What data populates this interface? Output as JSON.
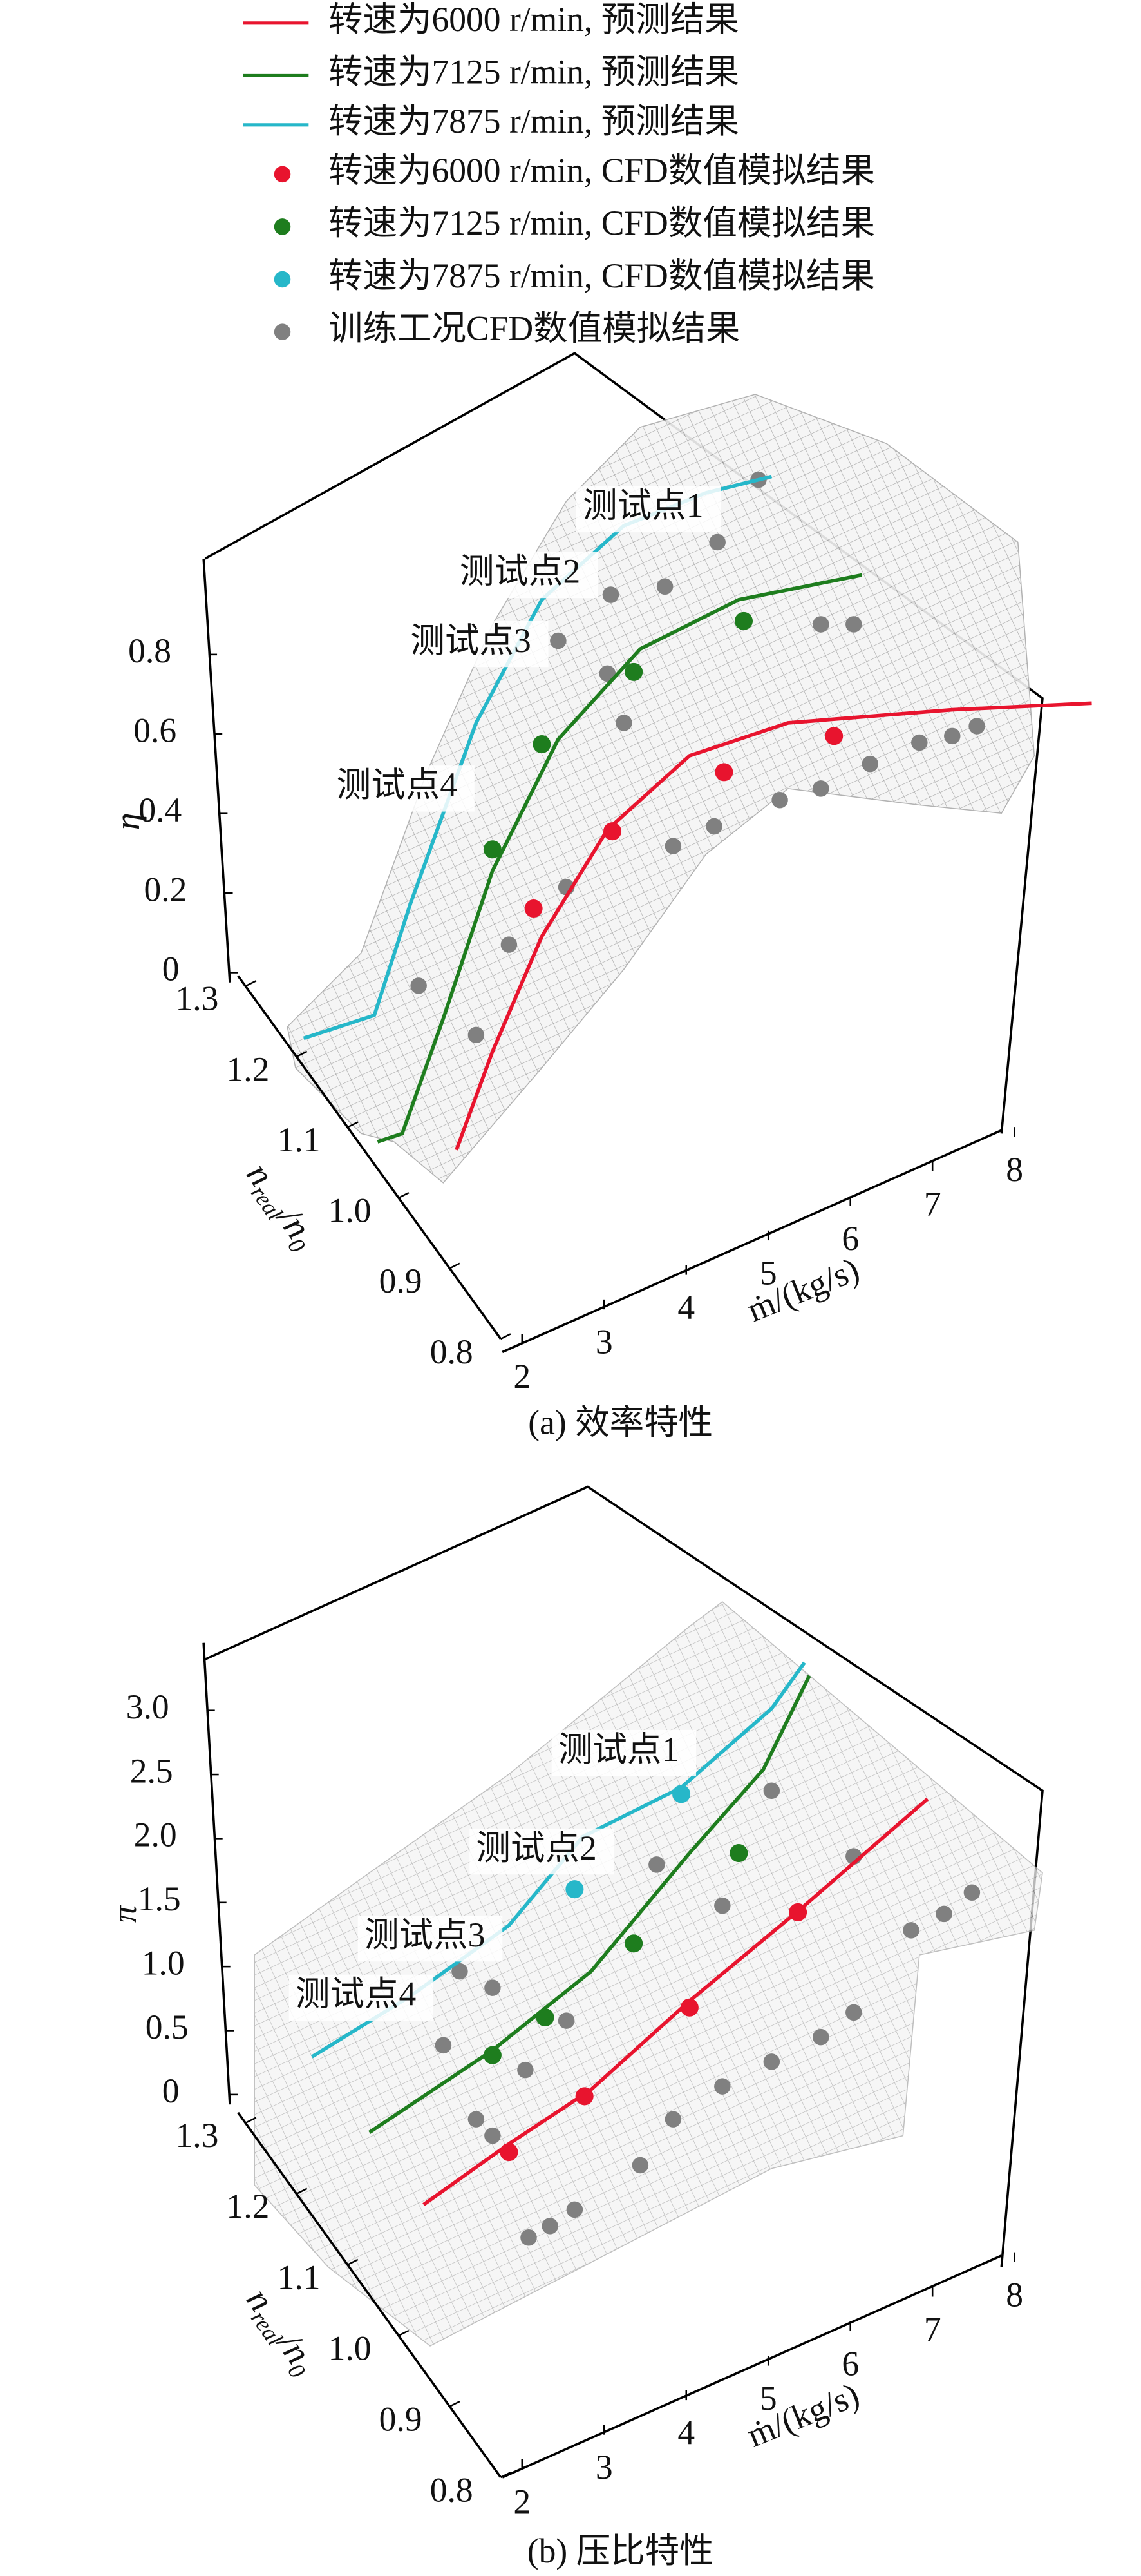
{
  "legend": [
    {
      "name": "转速为6000 r/min, 预测结果",
      "color": "#e8142e",
      "marker": "line"
    },
    {
      "name": "转速为7125 r/min, 预测结果",
      "color": "#1e7d1e",
      "marker": "line"
    },
    {
      "name": "转速为7875 r/min, 预测结果",
      "color": "#26b7c9",
      "marker": "line"
    },
    {
      "name": "转速为6000 r/min, CFD数值模拟结果",
      "color": "#e8142e",
      "marker": "dot"
    },
    {
      "name": "转速为7125 r/min, CFD数值模拟结果",
      "color": "#1e7d1e",
      "marker": "dot"
    },
    {
      "name": "转速为7875 r/min, CFD数值模拟结果",
      "color": "#26b7c9",
      "marker": "dot"
    },
    {
      "name": "训练工况CFD数值模拟结果",
      "color": "#808080",
      "marker": "dot"
    }
  ],
  "chart_data": [
    {
      "type": "surface3d",
      "title": "(a) 效率特性",
      "zlabel": "η",
      "xlabel": "ṁ/(kg/s)",
      "ylabel": [
        "n",
        "real",
        "/n",
        "0"
      ],
      "xlim": [
        2,
        8
      ],
      "xticks": [
        2,
        3,
        4,
        5,
        6,
        7,
        8
      ],
      "ylim": [
        0.8,
        1.3
      ],
      "yticks": [
        0.8,
        0.9,
        {
          "value": 1.0,
          "label": "1.0"
        },
        1.1,
        1.2,
        1.3
      ],
      "zlim": [
        0,
        1
      ],
      "zticks": [
        0,
        0.2,
        0.4,
        0.6,
        0.8
      ],
      "annotations": [
        "测试点1",
        "测试点2",
        "测试点3",
        "测试点4"
      ]
    },
    {
      "type": "surface3d",
      "title": "(b) 压比特性",
      "zlabel": "π",
      "xlabel": "ṁ/(kg/s)",
      "ylabel": [
        "n",
        "real",
        "/n",
        "0"
      ],
      "xlim": [
        2,
        8
      ],
      "xticks": [
        2,
        3,
        4,
        5,
        6,
        7,
        8
      ],
      "ylim": [
        0.8,
        1.3
      ],
      "yticks": [
        0.8,
        0.9,
        {
          "value": 1.0,
          "label": "1.0"
        },
        1.1,
        1.2,
        1.3
      ],
      "zlim": [
        0,
        3.4
      ],
      "zticks": [
        0,
        0.5,
        {
          "value": 1.0,
          "label": "1.0"
        },
        1.5,
        {
          "value": 2.0,
          "label": "2.0"
        },
        2.5,
        {
          "value": 3.0,
          "label": "3.0"
        }
      ],
      "annotations": [
        "测试点1",
        "测试点2",
        "测试点3",
        "测试点4"
      ]
    }
  ]
}
